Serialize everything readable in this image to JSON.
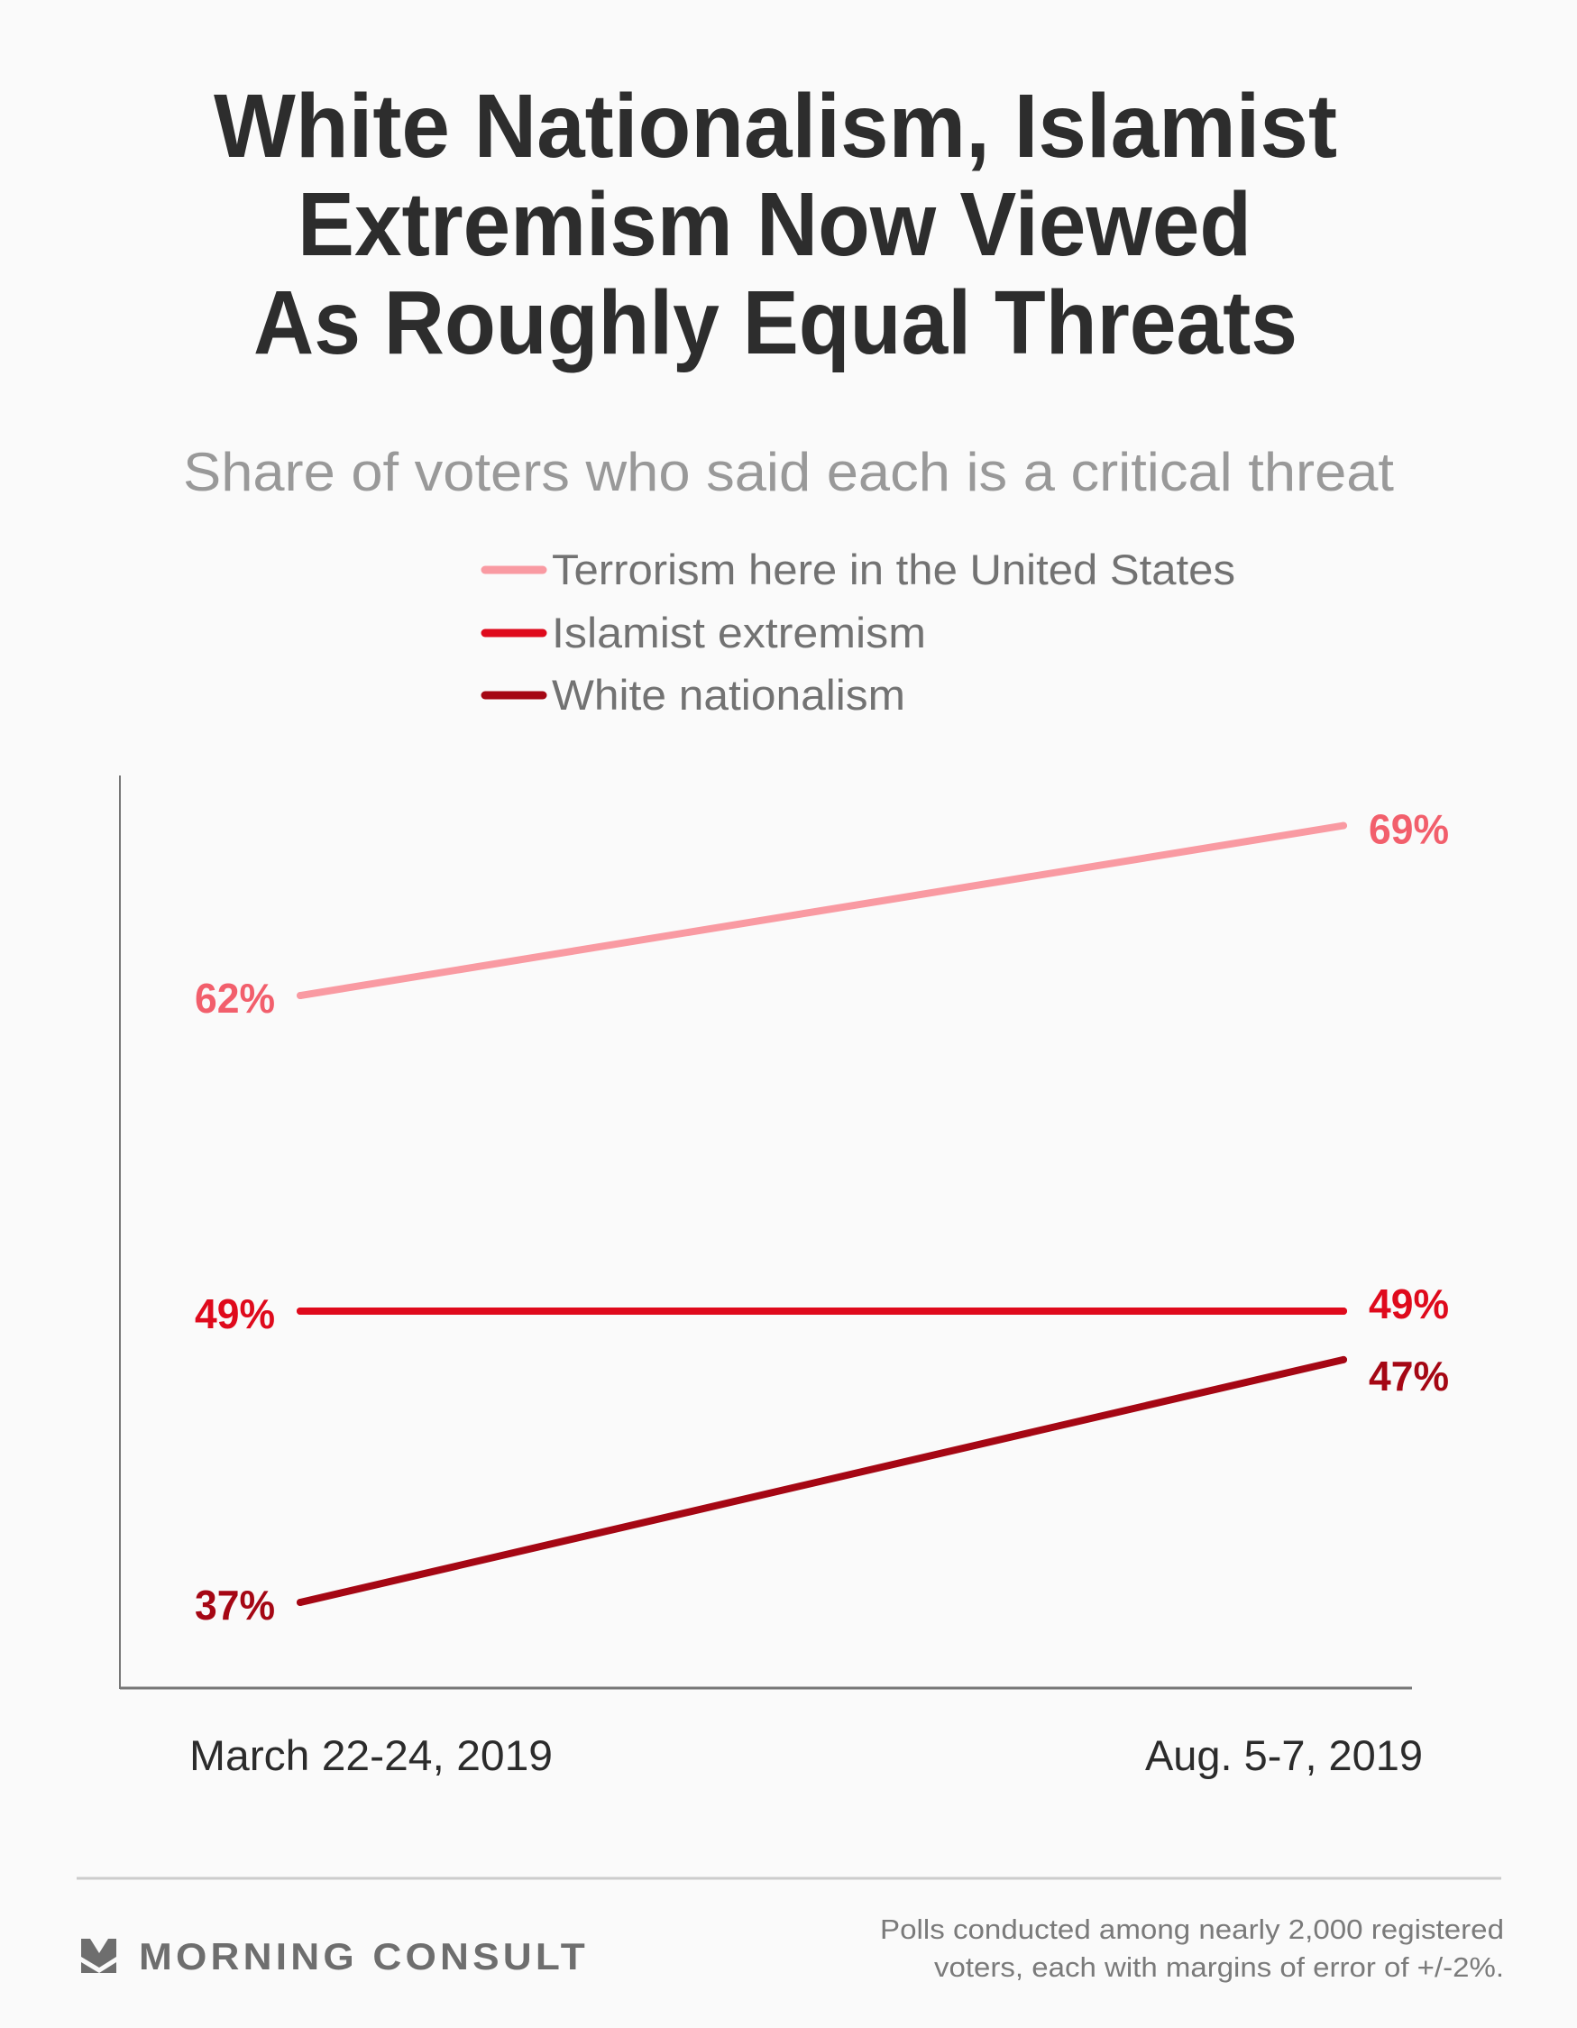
{
  "colors": {
    "background": "#fafafa",
    "terrorism_line": "#f99aa2",
    "terrorism_label": "#f25f6c",
    "islamist_line": "#df0a1c",
    "white_nationalism_line": "#a50714",
    "axis": "#777777",
    "divider": "#cccccc"
  },
  "chart_data": {
    "type": "line",
    "title": "White Nationalism, Islamist Extremism Now Viewed As Roughly Equal Threats",
    "title_lines": [
      "White Nationalism, Islamist",
      "Extremism Now Viewed",
      "As Roughly Equal Threats"
    ],
    "subtitle": "Share of voters who said each is a critical threat",
    "xlabel": "",
    "ylabel": "",
    "x": [
      "March 22-24, 2019",
      "Aug. 5-7, 2019"
    ],
    "ylim": [
      33.5,
      71
    ],
    "grid": false,
    "legend_position": "top-center",
    "series": [
      {
        "name": "Terrorism here in the United States",
        "values": [
          62,
          69
        ],
        "labels": [
          "62%",
          "69%"
        ],
        "color": "#f99aa2",
        "label_color": "#f25f6c"
      },
      {
        "name": "Islamist extremism",
        "values": [
          49,
          49
        ],
        "labels": [
          "49%",
          "49%"
        ],
        "color": "#df0a1c",
        "label_color": "#df0a1c"
      },
      {
        "name": "White nationalism",
        "values": [
          37,
          47
        ],
        "labels": [
          "37%",
          "47%"
        ],
        "color": "#a50714",
        "label_color": "#a50714"
      }
    ]
  },
  "footer": {
    "brand": "MORNING CONSULT",
    "brand_icon": "morning-consult-chevron-icon",
    "note_lines": [
      "Polls conducted among nearly 2,000 registered",
      "voters, each with margins of error of +/-2%."
    ]
  }
}
